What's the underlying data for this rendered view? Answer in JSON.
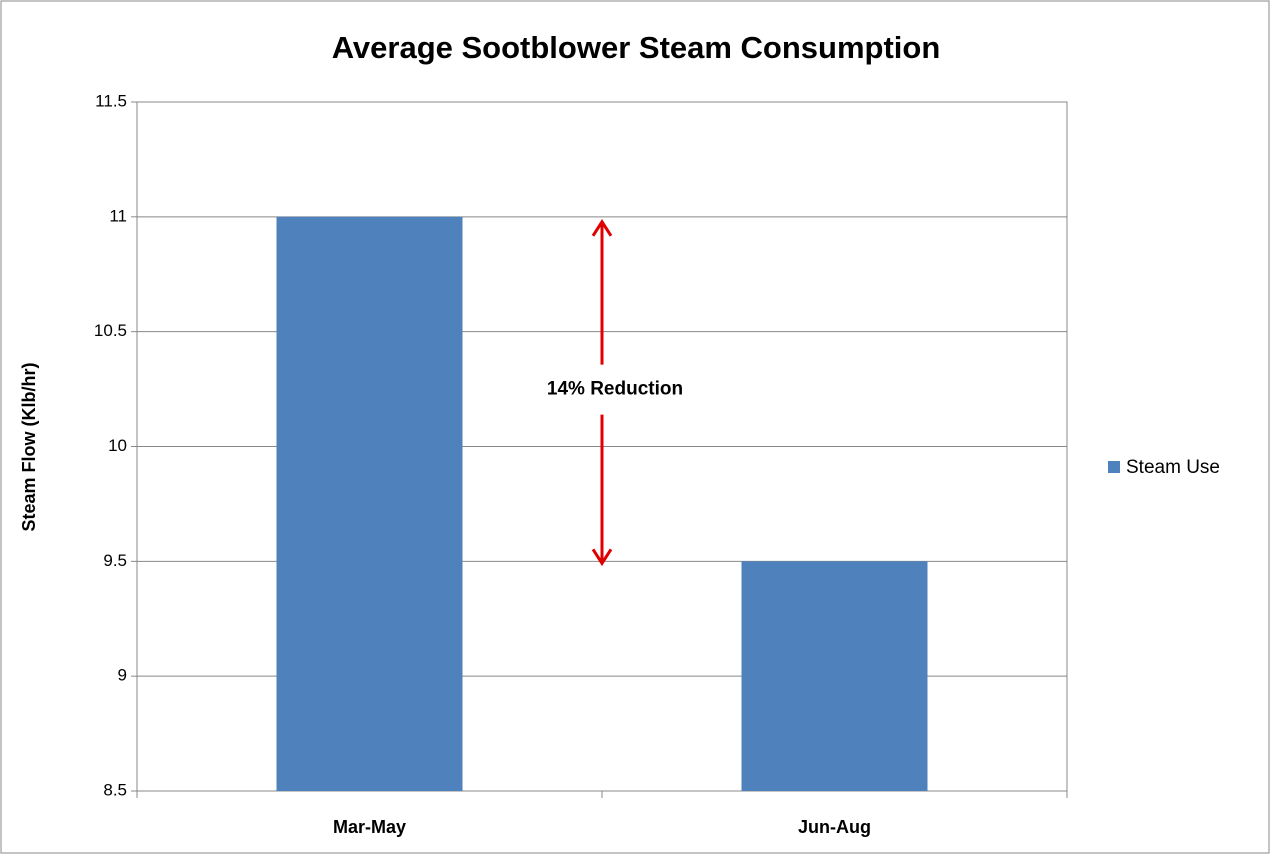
{
  "chart_data": {
    "type": "bar",
    "title": "Average Sootblower Steam Consumption",
    "y_label": "Steam Flow (Klb/hr)",
    "categories": [
      "Mar-May",
      "Jun-Aug"
    ],
    "series": [
      {
        "name": "Steam Use",
        "color": "#4f81bd",
        "values": [
          11.0,
          9.5
        ]
      }
    ],
    "ylim": [
      8.5,
      11.5
    ],
    "yticks": [
      8.5,
      9,
      9.5,
      10,
      10.5,
      11,
      11.5
    ],
    "grid": true,
    "legend": "right",
    "annotation": "14% Reduction"
  }
}
